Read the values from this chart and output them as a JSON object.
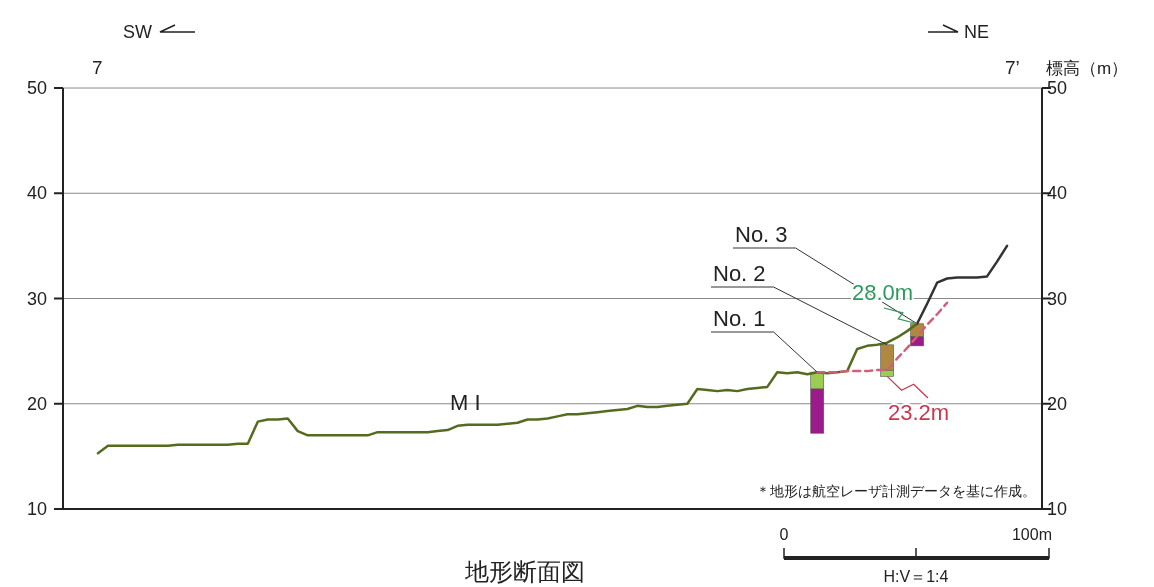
{
  "chart_data": {
    "type": "line",
    "title": "地形断面図",
    "y2label": "標高（m）",
    "categories": [
      null,
      null,
      null,
      null,
      null,
      null,
      null,
      null,
      null,
      null,
      null,
      null,
      null,
      null,
      null,
      null,
      null,
      null,
      null,
      null,
      null,
      null,
      null,
      null,
      null,
      null,
      null,
      null,
      null,
      null,
      null,
      null,
      null,
      null,
      null,
      null,
      null,
      null,
      null,
      null,
      null,
      null,
      null,
      null,
      null,
      null,
      null,
      null,
      null,
      null,
      null,
      null,
      null,
      null,
      null,
      null,
      null,
      null,
      null,
      null,
      null,
      null,
      null,
      null,
      null,
      null,
      null,
      null,
      null,
      null,
      null,
      null,
      null,
      null,
      null,
      null,
      null,
      null,
      null,
      null,
      null,
      null,
      null,
      null,
      null,
      null,
      null,
      null,
      null,
      null,
      null,
      null,
      null,
      null,
      null,
      null,
      null,
      null
    ],
    "ylim": [
      10,
      50
    ],
    "yticks": [
      10,
      20,
      30,
      40,
      50
    ],
    "y2lim": [
      10,
      50
    ],
    "y2ticks": [
      10,
      20,
      30,
      40,
      50
    ],
    "grid": "y",
    "series": [
      {
        "color": "#556b1f",
        "values": [
          null,
          null,
          null,
          15.3,
          16.0,
          16.0,
          16.0,
          16.0,
          16.0,
          16.0,
          16.0,
          16.1,
          16.1,
          16.1,
          16.1,
          16.1,
          16.1,
          16.2,
          16.2,
          18.3,
          18.5,
          18.5,
          18.6,
          17.4,
          17.0,
          17.0,
          17.0,
          17.0,
          17.0,
          17.0,
          17.0,
          17.3,
          17.3,
          17.3,
          17.3,
          17.3,
          17.3,
          17.4,
          17.5,
          17.9,
          18.0,
          18.0,
          18.0,
          18.0,
          18.1,
          18.2,
          18.5,
          18.5,
          18.6,
          18.8,
          19.0,
          19.0,
          19.1,
          19.2,
          19.3,
          19.4,
          19.5,
          19.8,
          19.7,
          19.7,
          19.8,
          19.9,
          20.0,
          21.4,
          21.3,
          21.2,
          21.3,
          21.2,
          21.4,
          21.5,
          21.6,
          23.0,
          22.9,
          23.0,
          22.8,
          23.0,
          22.9,
          23.0,
          23.1,
          25.2,
          25.5,
          25.6,
          25.8,
          26.3,
          26.9,
          27.6,
          null,
          null,
          null,
          null,
          null,
          null,
          null,
          null,
          null,
          null,
          null,
          null
        ]
      },
      {
        "color": "#333333",
        "values": [
          null,
          null,
          null,
          null,
          null,
          null,
          null,
          null,
          null,
          null,
          null,
          null,
          null,
          null,
          null,
          null,
          null,
          null,
          null,
          null,
          null,
          null,
          null,
          null,
          null,
          null,
          null,
          null,
          null,
          null,
          null,
          null,
          null,
          null,
          null,
          null,
          null,
          null,
          null,
          null,
          null,
          null,
          null,
          null,
          null,
          null,
          null,
          null,
          null,
          null,
          null,
          null,
          null,
          null,
          null,
          null,
          null,
          null,
          null,
          null,
          null,
          null,
          null,
          null,
          null,
          null,
          null,
          null,
          null,
          null,
          null,
          null,
          null,
          null,
          null,
          null,
          null,
          null,
          null,
          null,
          null,
          null,
          null,
          null,
          null,
          27.6,
          29.5,
          31.5,
          31.9,
          32.0,
          32.0,
          32.0,
          32.1,
          33.5,
          35.0,
          null,
          null,
          null
        ]
      },
      {
        "color": "#d0607a",
        "line_style": "dashed",
        "values": [
          null,
          null,
          null,
          null,
          null,
          null,
          null,
          null,
          null,
          null,
          null,
          null,
          null,
          null,
          null,
          null,
          null,
          null,
          null,
          null,
          null,
          null,
          null,
          null,
          null,
          null,
          null,
          null,
          null,
          null,
          null,
          null,
          null,
          null,
          null,
          null,
          null,
          null,
          null,
          null,
          null,
          null,
          null,
          null,
          null,
          null,
          null,
          null,
          null,
          null,
          null,
          null,
          null,
          null,
          null,
          null,
          null,
          null,
          null,
          null,
          null,
          null,
          null,
          null,
          null,
          null,
          null,
          null,
          null,
          null,
          null,
          null,
          null,
          null,
          null,
          23.0,
          23.0,
          23.0,
          23.1,
          23.1,
          23.1,
          23.2,
          23.2,
          24.3,
          25.3,
          26.4,
          27.5,
          28.5,
          29.6,
          null,
          null,
          null,
          null,
          null,
          null,
          null,
          null,
          null
        ]
      },
      {
        "type": "bar",
        "color": "#9acd50",
        "base": [
          null,
          null,
          null,
          null,
          null,
          null,
          null,
          null,
          null,
          null,
          null,
          null,
          null,
          null,
          null,
          null,
          null,
          null,
          null,
          null,
          null,
          null,
          null,
          null,
          null,
          null,
          null,
          null,
          null,
          null,
          null,
          null,
          null,
          null,
          null,
          null,
          null,
          null,
          null,
          null,
          null,
          null,
          null,
          null,
          null,
          null,
          null,
          null,
          null,
          null,
          null,
          null,
          null,
          null,
          null,
          null,
          null,
          null,
          null,
          null,
          null,
          null,
          null,
          null,
          null,
          null,
          null,
          null,
          null,
          null,
          null,
          null,
          null,
          null,
          null,
          21.4,
          null,
          null,
          null,
          null,
          null,
          null,
          22.6,
          null,
          null,
          null,
          null,
          null,
          null,
          null,
          null,
          null,
          null,
          null,
          null,
          null,
          null,
          null
        ],
        "values": [
          null,
          null,
          null,
          null,
          null,
          null,
          null,
          null,
          null,
          null,
          null,
          null,
          null,
          null,
          null,
          null,
          null,
          null,
          null,
          null,
          null,
          null,
          null,
          null,
          null,
          null,
          null,
          null,
          null,
          null,
          null,
          null,
          null,
          null,
          null,
          null,
          null,
          null,
          null,
          null,
          null,
          null,
          null,
          null,
          null,
          null,
          null,
          null,
          null,
          null,
          null,
          null,
          null,
          null,
          null,
          null,
          null,
          null,
          null,
          null,
          null,
          null,
          null,
          null,
          null,
          null,
          null,
          null,
          null,
          null,
          null,
          null,
          null,
          null,
          null,
          1.6,
          null,
          null,
          null,
          null,
          null,
          null,
          0.6,
          null,
          null,
          null,
          null,
          null,
          null,
          null,
          null,
          null,
          null,
          null,
          null,
          null,
          null,
          null
        ]
      },
      {
        "type": "bar",
        "color": "#9b1a8c",
        "base": [
          null,
          null,
          null,
          null,
          null,
          null,
          null,
          null,
          null,
          null,
          null,
          null,
          null,
          null,
          null,
          null,
          null,
          null,
          null,
          null,
          null,
          null,
          null,
          null,
          null,
          null,
          null,
          null,
          null,
          null,
          null,
          null,
          null,
          null,
          null,
          null,
          null,
          null,
          null,
          null,
          null,
          null,
          null,
          null,
          null,
          null,
          null,
          null,
          null,
          null,
          null,
          null,
          null,
          null,
          null,
          null,
          null,
          null,
          null,
          null,
          null,
          null,
          null,
          null,
          null,
          null,
          null,
          null,
          null,
          null,
          null,
          null,
          null,
          null,
          null,
          17.2,
          null,
          null,
          null,
          null,
          null,
          null,
          null,
          null,
          null,
          25.5,
          null,
          null,
          null,
          null,
          null,
          null,
          null,
          null,
          null,
          null,
          null,
          null
        ],
        "values": [
          null,
          null,
          null,
          null,
          null,
          null,
          null,
          null,
          null,
          null,
          null,
          null,
          null,
          null,
          null,
          null,
          null,
          null,
          null,
          null,
          null,
          null,
          null,
          null,
          null,
          null,
          null,
          null,
          null,
          null,
          null,
          null,
          null,
          null,
          null,
          null,
          null,
          null,
          null,
          null,
          null,
          null,
          null,
          null,
          null,
          null,
          null,
          null,
          null,
          null,
          null,
          null,
          null,
          null,
          null,
          null,
          null,
          null,
          null,
          null,
          null,
          null,
          null,
          null,
          null,
          null,
          null,
          null,
          null,
          null,
          null,
          null,
          null,
          null,
          null,
          4.2,
          null,
          null,
          null,
          null,
          null,
          null,
          null,
          null,
          null,
          0.9,
          null,
          null,
          null,
          null,
          null,
          null,
          null,
          null,
          null,
          null,
          null,
          null
        ]
      },
      {
        "type": "bar",
        "color": "#b08840",
        "base": [
          null,
          null,
          null,
          null,
          null,
          null,
          null,
          null,
          null,
          null,
          null,
          null,
          null,
          null,
          null,
          null,
          null,
          null,
          null,
          null,
          null,
          null,
          null,
          null,
          null,
          null,
          null,
          null,
          null,
          null,
          null,
          null,
          null,
          null,
          null,
          null,
          null,
          null,
          null,
          null,
          null,
          null,
          null,
          null,
          null,
          null,
          null,
          null,
          null,
          null,
          null,
          null,
          null,
          null,
          null,
          null,
          null,
          null,
          null,
          null,
          null,
          null,
          null,
          null,
          null,
          null,
          null,
          null,
          null,
          null,
          null,
          null,
          null,
          null,
          null,
          null,
          null,
          null,
          null,
          null,
          null,
          null,
          23.2,
          null,
          null,
          26.4,
          null,
          null,
          null,
          null,
          null,
          null,
          null,
          null,
          null,
          null,
          null,
          null
        ],
        "values": [
          null,
          null,
          null,
          null,
          null,
          null,
          null,
          null,
          null,
          null,
          null,
          null,
          null,
          null,
          null,
          null,
          null,
          null,
          null,
          null,
          null,
          null,
          null,
          null,
          null,
          null,
          null,
          null,
          null,
          null,
          null,
          null,
          null,
          null,
          null,
          null,
          null,
          null,
          null,
          null,
          null,
          null,
          null,
          null,
          null,
          null,
          null,
          null,
          null,
          null,
          null,
          null,
          null,
          null,
          null,
          null,
          null,
          null,
          null,
          null,
          null,
          null,
          null,
          null,
          null,
          null,
          null,
          null,
          null,
          null,
          null,
          null,
          null,
          null,
          null,
          null,
          null,
          null,
          null,
          null,
          null,
          null,
          2.4,
          null,
          null,
          1.2,
          null,
          null,
          null,
          null,
          null,
          null,
          null,
          null,
          null,
          null,
          null,
          null
        ]
      }
    ],
    "annotations": [
      "SW",
      "NE",
      "7",
      "7’",
      "M I",
      "No. 1",
      "No. 2",
      "No. 3",
      "28.0m",
      "23.2m",
      "＊地形は航空レーザ計測データを基に作成。",
      "0",
      "100m",
      "H:V＝1:4"
    ]
  }
}
